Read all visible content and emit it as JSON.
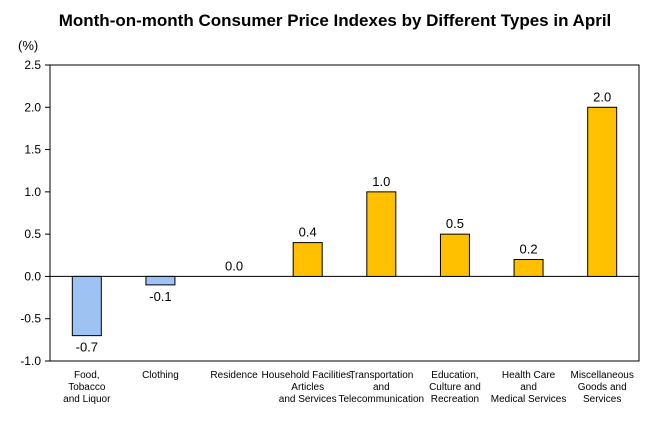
{
  "chart_data": {
    "type": "bar",
    "title": "Month-on-month Consumer Price Indexes by Different Types in April",
    "unit_label": "(%)",
    "categories": [
      [
        "Food,",
        "Tobacco",
        "and Liquor"
      ],
      [
        "Clothing"
      ],
      [
        "Residence"
      ],
      [
        "Household Facilities,",
        "Articles",
        "and Services"
      ],
      [
        "Transportation",
        "and",
        "Telecommunication"
      ],
      [
        "Education,",
        "Culture and",
        "Recreation"
      ],
      [
        "Health Care",
        "and",
        "Medical Services"
      ],
      [
        "Miscellaneous",
        "Goods and",
        "Services"
      ]
    ],
    "values": [
      -0.7,
      -0.1,
      0.0,
      0.4,
      1.0,
      0.5,
      0.2,
      2.0
    ],
    "value_labels": [
      "-0.7",
      "-0.1",
      "0.0",
      "0.4",
      "1.0",
      "0.5",
      "0.2",
      "2.0"
    ],
    "ylim": [
      -1.0,
      2.5
    ],
    "yticks": [
      -1.0,
      -0.5,
      0.0,
      0.5,
      1.0,
      1.5,
      2.0,
      2.5
    ],
    "ytick_labels": [
      "-1.0",
      "-0.5",
      "0.0",
      "0.5",
      "1.0",
      "1.5",
      "2.0",
      "2.5"
    ],
    "grid": false,
    "legend": "none",
    "colors": {
      "positive": "#FFC000",
      "negative": "#9DC3F5",
      "stroke": "#000000"
    }
  }
}
